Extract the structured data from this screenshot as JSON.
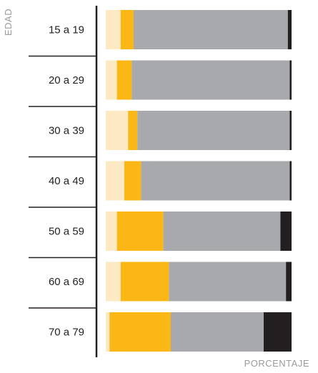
{
  "chart_data": {
    "type": "bar",
    "orientation": "horizontal",
    "stacked": true,
    "normalized": true,
    "xlabel": "PORCENTAJE",
    "ylabel": "EDAD",
    "xlim": [
      0,
      100
    ],
    "categories": [
      "15 a 19",
      "20 a 29",
      "30 a 39",
      "40 a 49",
      "50 a 59",
      "60 a 69",
      "70 a 79"
    ],
    "series": [
      {
        "color": "#fde9c4",
        "values": [
          8,
          6,
          12,
          10,
          6,
          8,
          2
        ]
      },
      {
        "color": "#fbb715",
        "values": [
          7,
          8,
          5,
          9,
          25,
          26,
          33
        ]
      },
      {
        "color": "#a7a9ac",
        "values": [
          83,
          85,
          82,
          80,
          63,
          63,
          50
        ]
      },
      {
        "color": "#231f20",
        "values": [
          2,
          1,
          1,
          1,
          6,
          3,
          15
        ]
      }
    ]
  }
}
